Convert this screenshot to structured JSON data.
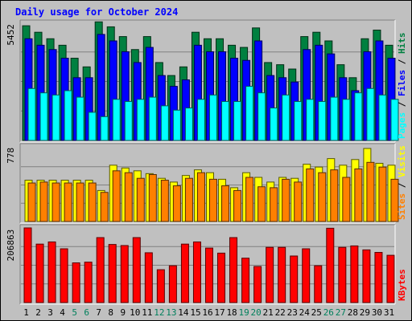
{
  "chart_data": {
    "type": "bar",
    "title": "Daily usage for October 2024",
    "categories": [
      "1",
      "2",
      "3",
      "4",
      "5",
      "6",
      "7",
      "8",
      "9",
      "10",
      "11",
      "12",
      "13",
      "14",
      "15",
      "16",
      "17",
      "18",
      "19",
      "20",
      "21",
      "22",
      "23",
      "24",
      "25",
      "26",
      "27",
      "28",
      "29",
      "30",
      "31"
    ],
    "weekend_days": [
      "5",
      "6",
      "12",
      "13",
      "19",
      "20",
      "26",
      "27"
    ],
    "panels": [
      {
        "max_label": "5452",
        "ymax": 5452,
        "legend": [
          "Pages",
          "Files",
          "Hits"
        ],
        "series": [
          {
            "name": "Hits",
            "color": "#008040",
            "values": [
              5300,
              5000,
              4700,
              4400,
              3800,
              3400,
              5480,
              5250,
              4800,
              4200,
              4800,
              3600,
              3000,
              3400,
              5000,
              4700,
              4700,
              4400,
              4300,
              5200,
              3600,
              3500,
              3300,
              4800,
              5000,
              4600,
              3500,
              2900,
              4700,
              5100,
              4400
            ]
          },
          {
            "name": "Files",
            "color": "#0000ff",
            "values": [
              4700,
              4400,
              4200,
              3800,
              2900,
              2900,
              4900,
              4600,
              4100,
              3600,
              4300,
              3000,
              2500,
              2800,
              4400,
              4100,
              4100,
              3800,
              3700,
              4600,
              3000,
              2900,
              2700,
              4200,
              4400,
              4000,
              2900,
              2300,
              4100,
              4600,
              3800
            ]
          },
          {
            "name": "Pages",
            "color": "#00ffff",
            "values": [
              2400,
              2200,
              2100,
              2300,
              2000,
              1300,
              1100,
              1900,
              1800,
              1900,
              2000,
              1600,
              1400,
              1500,
              1900,
              2100,
              1800,
              1800,
              2500,
              2200,
              1500,
              2100,
              1800,
              1900,
              1800,
              2000,
              1900,
              2200,
              2400,
              2100,
              1900
            ]
          }
        ]
      },
      {
        "max_label": "778",
        "ymax": 778,
        "legend": [
          "Sites",
          "Visits"
        ],
        "series": [
          {
            "name": "Visits",
            "color": "#ffff00",
            "values": [
              440,
              440,
              440,
              440,
              440,
              440,
              330,
              600,
              570,
              540,
              510,
              460,
              420,
              490,
              550,
              520,
              450,
              360,
              520,
              470,
              420,
              470,
              460,
              610,
              580,
              670,
              600,
              660,
              778,
              620,
              600
            ]
          },
          {
            "name": "Sites",
            "color": "#ff8000",
            "values": [
              410,
              420,
              410,
              410,
              410,
              410,
              310,
              540,
              520,
              460,
              500,
              440,
              380,
              460,
              520,
              450,
              380,
              330,
              470,
              370,
              360,
              450,
              420,
              560,
              520,
              550,
              470,
              560,
              630,
              580,
              450
            ]
          }
        ]
      },
      {
        "max_label": "206863",
        "ymax": 206863,
        "legend": [
          "KBytes"
        ],
        "series": [
          {
            "name": "KBytes",
            "color": "#ff0000",
            "values": [
              206863,
              162000,
              168000,
              149000,
              110000,
              112000,
              180000,
              161000,
              158000,
              180000,
              138000,
              91000,
              102000,
              162000,
              168000,
              151000,
              137000,
              180000,
              123000,
              100000,
              153000,
              153000,
              129000,
              149000,
              102000,
              206000,
              153000,
              157000,
              146000,
              139000,
              131000
            ]
          }
        ]
      }
    ]
  }
}
